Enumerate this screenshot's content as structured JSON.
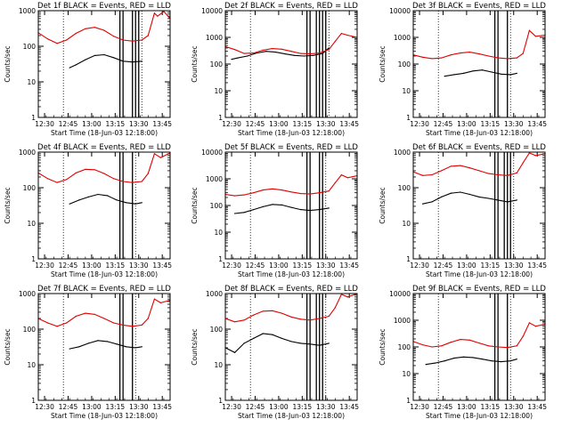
{
  "figure": {
    "title_template": "Det {n}f BLACK = Events, RED = LLD",
    "y_axis_label": "Counts/sec",
    "x_axis_label": "Start Time (18-Jun-03 12:18:00)",
    "x_tick_labels": [
      "12:30",
      "12:45",
      "13:00",
      "13:15",
      "13:30",
      "13:45"
    ],
    "y_tick_labels": [
      "1",
      "10",
      "100",
      "1000",
      "10000"
    ]
  },
  "chart_data": [
    {
      "type": "line",
      "title": "Det 1f BLACK = Events, RED = LLD",
      "xlabel": "Start Time (18-Jun-03 12:18:00)",
      "ylabel": "Counts/sec",
      "x_range_min": [
        -4,
        38
      ],
      "ylim": [
        1,
        1000
      ],
      "log_y": true,
      "ytick_labels": [
        "1",
        "10",
        "100",
        "1000"
      ],
      "series": [
        {
          "name": "BLACK = Events",
          "color": "#000000",
          "x": [
            6,
            8,
            11,
            14,
            17,
            20,
            23,
            26,
            29
          ],
          "y": [
            25,
            30,
            42,
            55,
            58,
            48,
            38,
            36,
            38
          ]
        },
        {
          "name": "RED = LLD",
          "color": "#e00000",
          "x": [
            -4,
            -1,
            2,
            5,
            8,
            11,
            14,
            17,
            20,
            23,
            26,
            29,
            31,
            33,
            34,
            36,
            38
          ],
          "y": [
            240,
            160,
            120,
            150,
            230,
            310,
            340,
            280,
            190,
            150,
            140,
            150,
            200,
            850,
            700,
            950,
            600
          ]
        }
      ],
      "vertical_markers": [
        4,
        22,
        23,
        26,
        27,
        28,
        29
      ]
    },
    {
      "type": "line",
      "title": "Det 2f BLACK = Events, RED = LLD",
      "xlabel": "Start Time (18-Jun-03 12:18:00)",
      "ylabel": "Counts/sec",
      "x_range_min": [
        -4,
        38
      ],
      "ylim": [
        1,
        10000
      ],
      "log_y": true,
      "ytick_labels": [
        "1",
        "10",
        "100",
        "1000",
        "10000"
      ],
      "series": [
        {
          "name": "BLACK = Events",
          "color": "#000000",
          "x": [
            -2,
            0,
            3,
            6,
            9,
            12,
            15,
            18,
            21,
            24,
            27,
            29
          ],
          "y": [
            150,
            170,
            200,
            260,
            300,
            280,
            240,
            210,
            200,
            210,
            250,
            400
          ]
        },
        {
          "name": "RED = LLD",
          "color": "#e00000",
          "x": [
            -4,
            -1,
            2,
            5,
            8,
            11,
            14,
            17,
            20,
            23,
            26,
            29,
            31,
            33,
            35,
            38
          ],
          "y": [
            450,
            350,
            250,
            260,
            330,
            380,
            360,
            300,
            250,
            240,
            260,
            350,
            700,
            1400,
            1200,
            1000
          ]
        }
      ],
      "vertical_markers": [
        4,
        22,
        23,
        25,
        26,
        27,
        28,
        29
      ]
    },
    {
      "type": "line",
      "title": "Det 3f BLACK = Events, RED = LLD",
      "xlabel": "Start Time (18-Jun-03 12:18:00)",
      "ylabel": "Counts/sec",
      "x_range_min": [
        -4,
        38
      ],
      "ylim": [
        1,
        10000
      ],
      "log_y": true,
      "ytick_labels": [
        "1",
        "10",
        "100",
        "1000",
        "10000"
      ],
      "series": [
        {
          "name": "BLACK = Events",
          "color": "#000000",
          "x": [
            6,
            9,
            12,
            15,
            18,
            21,
            24,
            27,
            29
          ],
          "y": [
            35,
            40,
            45,
            55,
            60,
            50,
            42,
            40,
            45
          ]
        },
        {
          "name": "RED = LLD",
          "color": "#e00000",
          "x": [
            -4,
            -1,
            2,
            5,
            8,
            11,
            14,
            17,
            20,
            23,
            26,
            29,
            31,
            33,
            35,
            38
          ],
          "y": [
            220,
            180,
            160,
            170,
            220,
            260,
            280,
            240,
            200,
            170,
            160,
            170,
            250,
            1800,
            1100,
            1200
          ]
        }
      ],
      "vertical_markers": [
        4,
        22,
        23,
        26,
        27
      ]
    },
    {
      "type": "line",
      "title": "Det 4f BLACK = Events, RED = LLD",
      "xlabel": "Start Time (18-Jun-03 12:18:00)",
      "ylabel": "Counts/sec",
      "x_range_min": [
        -4,
        38
      ],
      "ylim": [
        1,
        1000
      ],
      "log_y": true,
      "ytick_labels": [
        "1",
        "10",
        "100",
        "1000"
      ],
      "series": [
        {
          "name": "BLACK = Events",
          "color": "#000000",
          "x": [
            6,
            9,
            12,
            15,
            18,
            21,
            24,
            27,
            29
          ],
          "y": [
            35,
            45,
            55,
            65,
            60,
            45,
            38,
            35,
            38
          ]
        },
        {
          "name": "RED = LLD",
          "color": "#e00000",
          "x": [
            -4,
            -1,
            2,
            5,
            8,
            11,
            14,
            17,
            20,
            23,
            26,
            29,
            31,
            33,
            35,
            38
          ],
          "y": [
            260,
            180,
            140,
            170,
            260,
            330,
            320,
            250,
            180,
            150,
            140,
            150,
            250,
            900,
            700,
            950
          ]
        }
      ],
      "vertical_markers": [
        4,
        22,
        23,
        26,
        27
      ]
    },
    {
      "type": "line",
      "title": "Det 5f BLACK = Events, RED = LLD",
      "xlabel": "Start Time (18-Jun-03 12:18:00)",
      "ylabel": "Counts/sec",
      "x_range_min": [
        -4,
        38
      ],
      "ylim": [
        1,
        10000
      ],
      "log_y": true,
      "ytick_labels": [
        "1",
        "10",
        "100",
        "1000",
        "10000"
      ],
      "series": [
        {
          "name": "BLACK = Events",
          "color": "#000000",
          "x": [
            -1,
            2,
            5,
            8,
            11,
            14,
            17,
            20,
            23,
            26,
            29
          ],
          "y": [
            50,
            55,
            70,
            90,
            110,
            105,
            85,
            70,
            65,
            70,
            80
          ]
        },
        {
          "name": "RED = LLD",
          "color": "#e00000",
          "x": [
            -4,
            -1,
            2,
            5,
            8,
            11,
            14,
            17,
            20,
            23,
            26,
            29,
            31,
            33,
            35,
            38
          ],
          "y": [
            260,
            230,
            250,
            300,
            380,
            420,
            380,
            320,
            280,
            270,
            300,
            350,
            700,
            1400,
            1100,
            1300
          ]
        }
      ],
      "vertical_markers": [
        4,
        22,
        23,
        26,
        27,
        28
      ]
    },
    {
      "type": "line",
      "title": "Det 6f BLACK = Events, RED = LLD",
      "xlabel": "Start Time (18-Jun-03 12:18:00)",
      "ylabel": "Counts/sec",
      "x_range_min": [
        -4,
        38
      ],
      "ylim": [
        1,
        1000
      ],
      "log_y": true,
      "ytick_labels": [
        "1",
        "10",
        "100",
        "1000"
      ],
      "series": [
        {
          "name": "BLACK = Events",
          "color": "#000000",
          "x": [
            -1,
            2,
            5,
            8,
            11,
            14,
            17,
            20,
            23,
            26,
            29
          ],
          "y": [
            35,
            40,
            55,
            70,
            75,
            65,
            55,
            50,
            45,
            40,
            45
          ]
        },
        {
          "name": "RED = LLD",
          "color": "#e00000",
          "x": [
            -4,
            -1,
            2,
            5,
            8,
            11,
            14,
            17,
            20,
            23,
            26,
            29,
            31,
            33,
            35,
            38
          ],
          "y": [
            280,
            220,
            230,
            300,
            400,
            420,
            360,
            300,
            250,
            230,
            220,
            260,
            500,
            950,
            800,
            900
          ]
        }
      ],
      "vertical_markers": [
        4,
        22,
        23,
        25,
        26,
        27,
        28
      ]
    },
    {
      "type": "line",
      "title": "Det 7f BLACK = Events, RED = LLD",
      "xlabel": "Start Time (18-Jun-03 12:18:00)",
      "ylabel": "Counts/sec",
      "x_range_min": [
        -4,
        38
      ],
      "ylim": [
        1,
        1000
      ],
      "log_y": true,
      "ytick_labels": [
        "1",
        "10",
        "100",
        "1000"
      ],
      "series": [
        {
          "name": "BLACK = Events",
          "color": "#000000",
          "x": [
            6,
            9,
            12,
            15,
            18,
            21,
            24,
            27,
            29
          ],
          "y": [
            28,
            32,
            40,
            48,
            45,
            38,
            32,
            30,
            32
          ]
        },
        {
          "name": "RED = LLD",
          "color": "#e00000",
          "x": [
            -4,
            -1,
            2,
            5,
            8,
            11,
            14,
            17,
            20,
            23,
            26,
            29,
            31,
            33,
            35,
            38
          ],
          "y": [
            200,
            150,
            120,
            150,
            230,
            280,
            260,
            200,
            150,
            130,
            120,
            130,
            200,
            700,
            550,
            650
          ]
        }
      ],
      "vertical_markers": [
        4,
        22,
        23,
        26,
        27
      ]
    },
    {
      "type": "line",
      "title": "Det 8f BLACK = Events, RED = LLD",
      "xlabel": "Start Time (18-Jun-03 12:18:00)",
      "ylabel": "Counts/sec",
      "x_range_min": [
        -4,
        38
      ],
      "ylim": [
        1,
        1000
      ],
      "log_y": true,
      "ytick_labels": [
        "1",
        "10",
        "100",
        "1000"
      ],
      "series": [
        {
          "name": "BLACK = Events",
          "color": "#000000",
          "x": [
            -4,
            -1,
            2,
            5,
            8,
            11,
            14,
            17,
            20,
            23,
            26,
            29
          ],
          "y": [
            30,
            22,
            40,
            55,
            75,
            70,
            55,
            45,
            40,
            38,
            35,
            40
          ]
        },
        {
          "name": "RED = LLD",
          "color": "#e00000",
          "x": [
            -4,
            -1,
            2,
            5,
            8,
            11,
            14,
            17,
            20,
            23,
            26,
            29,
            31,
            33,
            35,
            38
          ],
          "y": [
            200,
            160,
            180,
            250,
            320,
            330,
            280,
            220,
            190,
            180,
            200,
            230,
            400,
            950,
            800,
            1000
          ]
        }
      ],
      "vertical_markers": [
        4,
        22,
        23,
        25,
        26,
        27,
        28
      ]
    },
    {
      "type": "line",
      "title": "Det 9f BLACK = Events, RED = LLD",
      "xlabel": "Start Time (18-Jun-03 12:18:00)",
      "ylabel": "Counts/sec",
      "x_range_min": [
        -4,
        38
      ],
      "ylim": [
        1,
        10000
      ],
      "log_y": true,
      "ytick_labels": [
        "1",
        "10",
        "100",
        "1000",
        "10000"
      ],
      "series": [
        {
          "name": "BLACK = Events",
          "color": "#000000",
          "x": [
            0,
            3,
            6,
            9,
            12,
            15,
            18,
            21,
            24,
            27,
            29
          ],
          "y": [
            22,
            25,
            30,
            38,
            42,
            40,
            35,
            30,
            28,
            30,
            35
          ]
        },
        {
          "name": "RED = LLD",
          "color": "#e00000",
          "x": [
            -4,
            -1,
            2,
            5,
            8,
            11,
            14,
            17,
            20,
            23,
            26,
            29,
            31,
            33,
            35,
            38
          ],
          "y": [
            160,
            120,
            100,
            110,
            150,
            190,
            180,
            140,
            110,
            100,
            95,
            110,
            250,
            800,
            600,
            700
          ]
        }
      ],
      "vertical_markers": [
        4,
        22,
        23,
        26,
        27
      ]
    }
  ]
}
